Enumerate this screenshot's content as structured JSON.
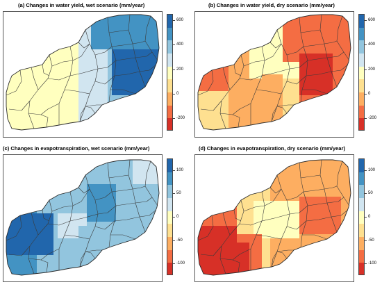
{
  "panels": [
    {
      "title": "(a) Changes in water yield, wet scenario (mm/year)",
      "scenario": "wet",
      "variable": "water yield",
      "colorbar_ticks": [
        "600",
        "400",
        "200",
        "0",
        "-200"
      ],
      "colorbar_range": [
        -300,
        650
      ]
    },
    {
      "title": "(b) Changes in water yield, dry scenario (mm/year)",
      "scenario": "dry",
      "variable": "water yield",
      "colorbar_ticks": [
        "600",
        "400",
        "200",
        "0",
        "-200"
      ],
      "colorbar_range": [
        -300,
        650
      ]
    },
    {
      "title": "(c) Changes in evapotranspiration, wet scenario (mm/year)",
      "scenario": "wet",
      "variable": "evapotranspiration",
      "colorbar_ticks": [
        "100",
        "50",
        "0",
        "-50",
        "-100"
      ],
      "colorbar_range": [
        -125,
        125
      ]
    },
    {
      "title": "(d) Changes in evapotranspiration, dry scenario (mm/year)",
      "scenario": "dry",
      "variable": "evapotranspiration",
      "colorbar_ticks": [
        "100",
        "50",
        "0",
        "-50",
        "-100"
      ],
      "colorbar_range": [
        -125,
        125
      ]
    }
  ],
  "palette": [
    "#2166ac",
    "#4393c3",
    "#92c5de",
    "#d1e5f0",
    "#ffffbf",
    "#fee090",
    "#fdae61",
    "#f46d43",
    "#d73027"
  ]
}
